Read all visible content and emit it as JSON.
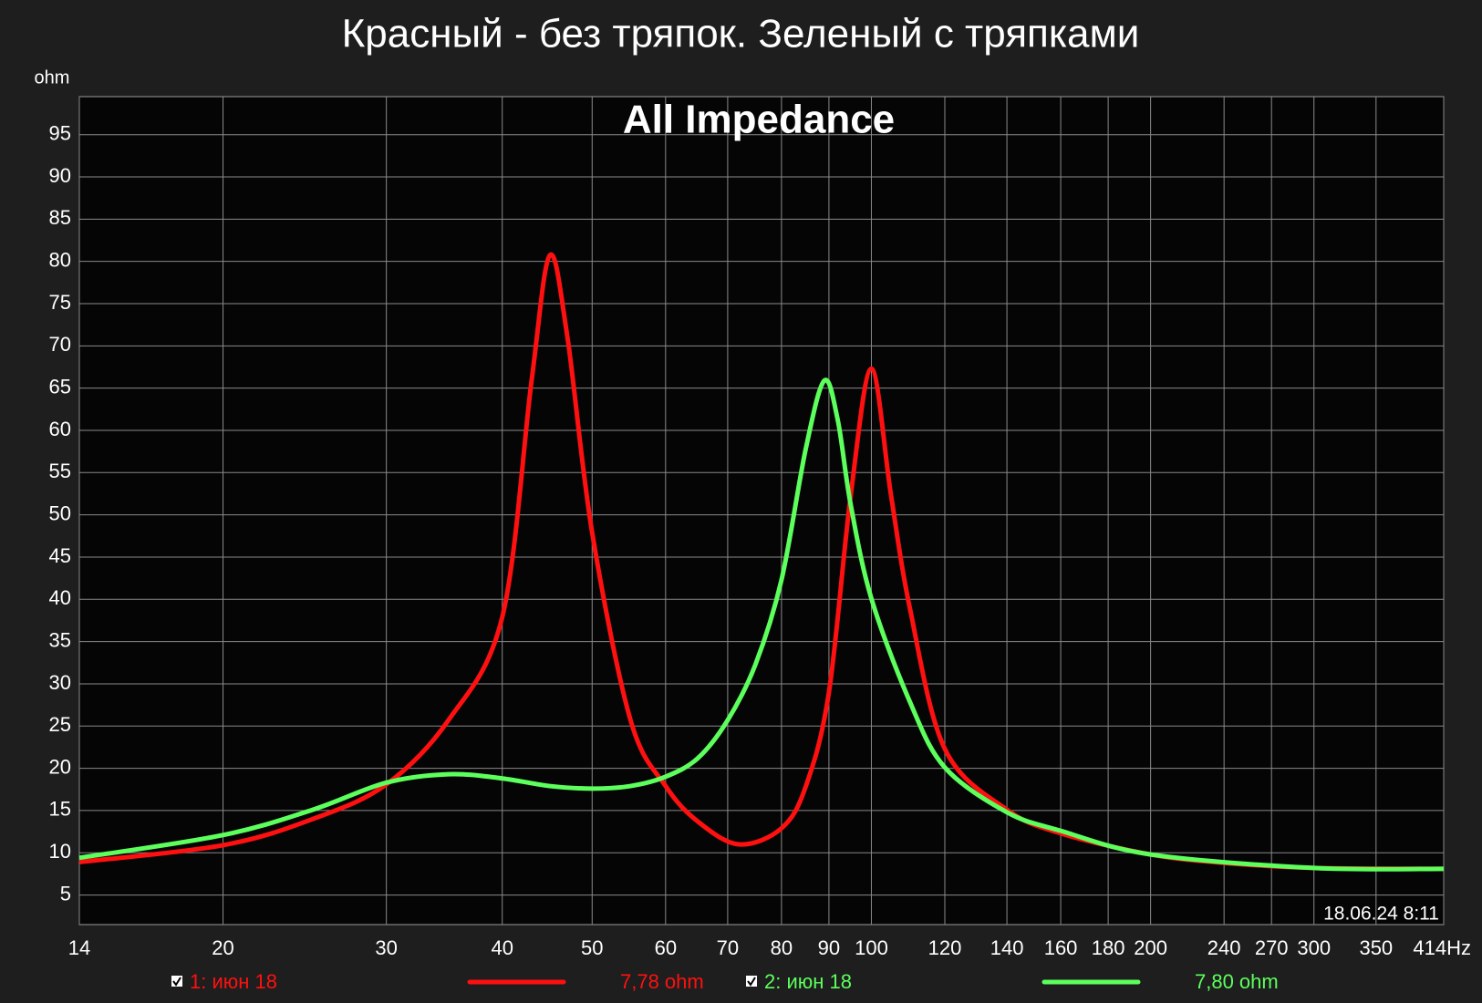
{
  "chart_data": {
    "type": "line",
    "title": "Красный - без тряпок. Зеленый с тряпками",
    "subtitle": "All Impedance",
    "y_label": "ohm",
    "timestamp": "18.06.24 8:11",
    "log_x": true,
    "grid": true,
    "xlim": [
      14,
      414
    ],
    "xticks": [
      14,
      20,
      30,
      40,
      50,
      60,
      70,
      80,
      90,
      100,
      120,
      140,
      160,
      180,
      200,
      240,
      270,
      300,
      350,
      {
        "value": 414,
        "label": "414Hz"
      }
    ],
    "ylim": [
      1.5,
      99.5
    ],
    "yticks": [
      5,
      10,
      15,
      20,
      25,
      30,
      35,
      40,
      45,
      50,
      55,
      60,
      65,
      70,
      75,
      80,
      85,
      90,
      95
    ],
    "series": [
      {
        "name": "1: июн 18",
        "legend_value": "7,78 ohm",
        "color": "#ff1010",
        "x": [
          14,
          20,
          25,
          30,
          35,
          40,
          43,
          45,
          47,
          50,
          55,
          60,
          65,
          72,
          80,
          85,
          90,
          95,
          100,
          105,
          110,
          120,
          140,
          160,
          200,
          240,
          300,
          414
        ],
        "values": [
          8.9,
          10.9,
          14,
          18.1,
          25.7,
          37.9,
          65.7,
          80.7,
          71.2,
          47.9,
          25.7,
          17.9,
          13.7,
          11,
          12.9,
          17.9,
          29,
          52.3,
          67.3,
          52.3,
          39,
          22.3,
          15.1,
          12.3,
          9.8,
          8.8,
          8.2,
          8.1
        ]
      },
      {
        "name": "2: июн 18",
        "legend_value": "7,80 ohm",
        "color": "#5cff5c",
        "x": [
          14,
          20,
          25,
          30,
          35,
          40,
          45,
          50,
          55,
          60,
          65,
          70,
          75,
          80,
          85,
          89,
          92,
          95,
          100,
          110,
          120,
          140,
          160,
          200,
          300,
          414
        ],
        "values": [
          9.4,
          12.1,
          15.1,
          18.3,
          19.3,
          18.8,
          17.9,
          17.6,
          17.9,
          19,
          21.2,
          25.7,
          32.3,
          42.3,
          57.9,
          65.9,
          61.2,
          51.2,
          40.1,
          27.9,
          20.1,
          14.8,
          12.6,
          9.8,
          8.2,
          8.1
        ]
      }
    ]
  }
}
